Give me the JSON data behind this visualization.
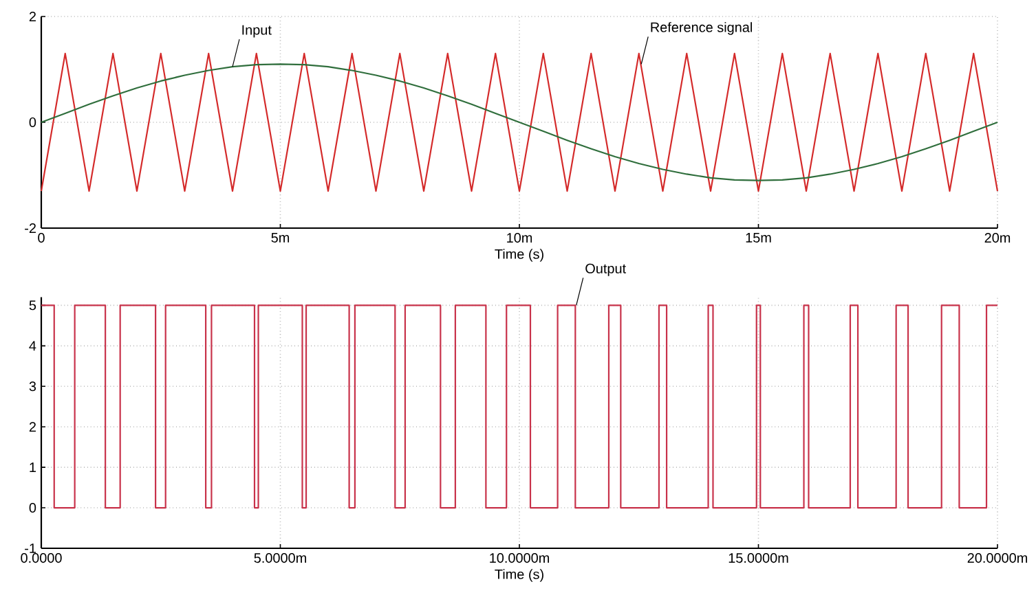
{
  "chart_data": [
    {
      "type": "line",
      "xlabel": "Time (s)",
      "xlim": [
        0,
        20
      ],
      "ylim": [
        -2,
        2
      ],
      "grid": true,
      "xticks": [
        0,
        {
          "value": 5,
          "label": "5m"
        },
        {
          "value": 10,
          "label": "10m"
        },
        {
          "value": 15,
          "label": "15m"
        },
        {
          "value": 20,
          "label": "20m"
        }
      ],
      "yticks": [
        -2,
        0,
        2
      ],
      "x": [
        0,
        0.5,
        1,
        1.5,
        2,
        2.5,
        3,
        3.5,
        4,
        4.5,
        5,
        5.5,
        6,
        6.5,
        7,
        7.5,
        8,
        8.5,
        9,
        9.5,
        10,
        10.5,
        11,
        11.5,
        12,
        12.5,
        13,
        13.5,
        14,
        14.5,
        15,
        15.5,
        16,
        16.5,
        17,
        17.5,
        18,
        18.5,
        19,
        19.5,
        20
      ],
      "series": [
        {
          "color": "#d42a2a",
          "values": [
            -1.3,
            1.3,
            -1.3,
            1.3,
            -1.3,
            1.3,
            -1.3,
            1.3,
            -1.3,
            1.3,
            -1.3,
            1.3,
            -1.3,
            1.3,
            -1.3,
            1.3,
            -1.3,
            1.3,
            -1.3,
            1.3,
            -1.3,
            1.3,
            -1.3,
            1.3,
            -1.3,
            1.3,
            -1.3,
            1.3,
            -1.3,
            1.3,
            -1.3,
            1.3,
            -1.3,
            1.3,
            -1.3,
            1.3,
            -1.3,
            1.3,
            -1.3,
            1.3,
            -1.3
          ]
        },
        {
          "color": "#2f6e3c",
          "values": [
            0,
            0.17,
            0.34,
            0.5,
            0.65,
            0.78,
            0.89,
            0.98,
            1.05,
            1.09,
            1.1,
            1.09,
            1.05,
            0.98,
            0.89,
            0.78,
            0.65,
            0.5,
            0.34,
            0.17,
            0,
            -0.17,
            -0.34,
            -0.5,
            -0.65,
            -0.78,
            -0.89,
            -0.98,
            -1.05,
            -1.09,
            -1.1,
            -1.09,
            -1.05,
            -0.98,
            -0.89,
            -0.78,
            -0.65,
            -0.5,
            -0.34,
            -0.17,
            0
          ]
        }
      ],
      "annotations": [
        {
          "text": "Input",
          "x": 4,
          "y": 1.05
        },
        {
          "text": "Reference signal",
          "x": 12.55,
          "y": 1.1
        }
      ]
    },
    {
      "type": "step",
      "xlabel": "Time (s)",
      "xlim": [
        0,
        20
      ],
      "ylim": [
        -1,
        5.2
      ],
      "grid": true,
      "xticks": [
        {
          "value": 0,
          "label": "0.0000"
        },
        {
          "value": 5,
          "label": "5.0000m"
        },
        {
          "value": 10,
          "label": "10.0000m"
        },
        {
          "value": 15,
          "label": "15.0000m"
        },
        {
          "value": 20,
          "label": "20.0000m"
        }
      ],
      "yticks": [
        -1,
        0,
        1,
        2,
        3,
        4,
        5
      ],
      "x": [
        0,
        0.27,
        0.7,
        1.34,
        1.65,
        2.39,
        2.6,
        3.44,
        3.56,
        4.46,
        4.54,
        5.46,
        5.54,
        6.44,
        6.56,
        7.4,
        7.61,
        8.35,
        8.66,
        9.3,
        9.73,
        10.23,
        10.8,
        11.17,
        11.87,
        12.12,
        12.92,
        13.08,
        13.95,
        14.05,
        14.96,
        15.04,
        15.95,
        16.05,
        16.92,
        17.08,
        17.88,
        18.13,
        18.83,
        19.2,
        19.77,
        20
      ],
      "series": [
        {
          "color": "#c8324a",
          "values": [
            5,
            0,
            5,
            0,
            5,
            0,
            5,
            0,
            5,
            0,
            5,
            0,
            5,
            0,
            5,
            0,
            5,
            0,
            5,
            0,
            5,
            0,
            5,
            0,
            5,
            0,
            5,
            0,
            5,
            0,
            5,
            0,
            5,
            0,
            5,
            0,
            5,
            0,
            5,
            0,
            5,
            5
          ]
        }
      ],
      "annotations": [
        {
          "text": "Output",
          "x": 11.19,
          "y": 5
        }
      ]
    }
  ]
}
